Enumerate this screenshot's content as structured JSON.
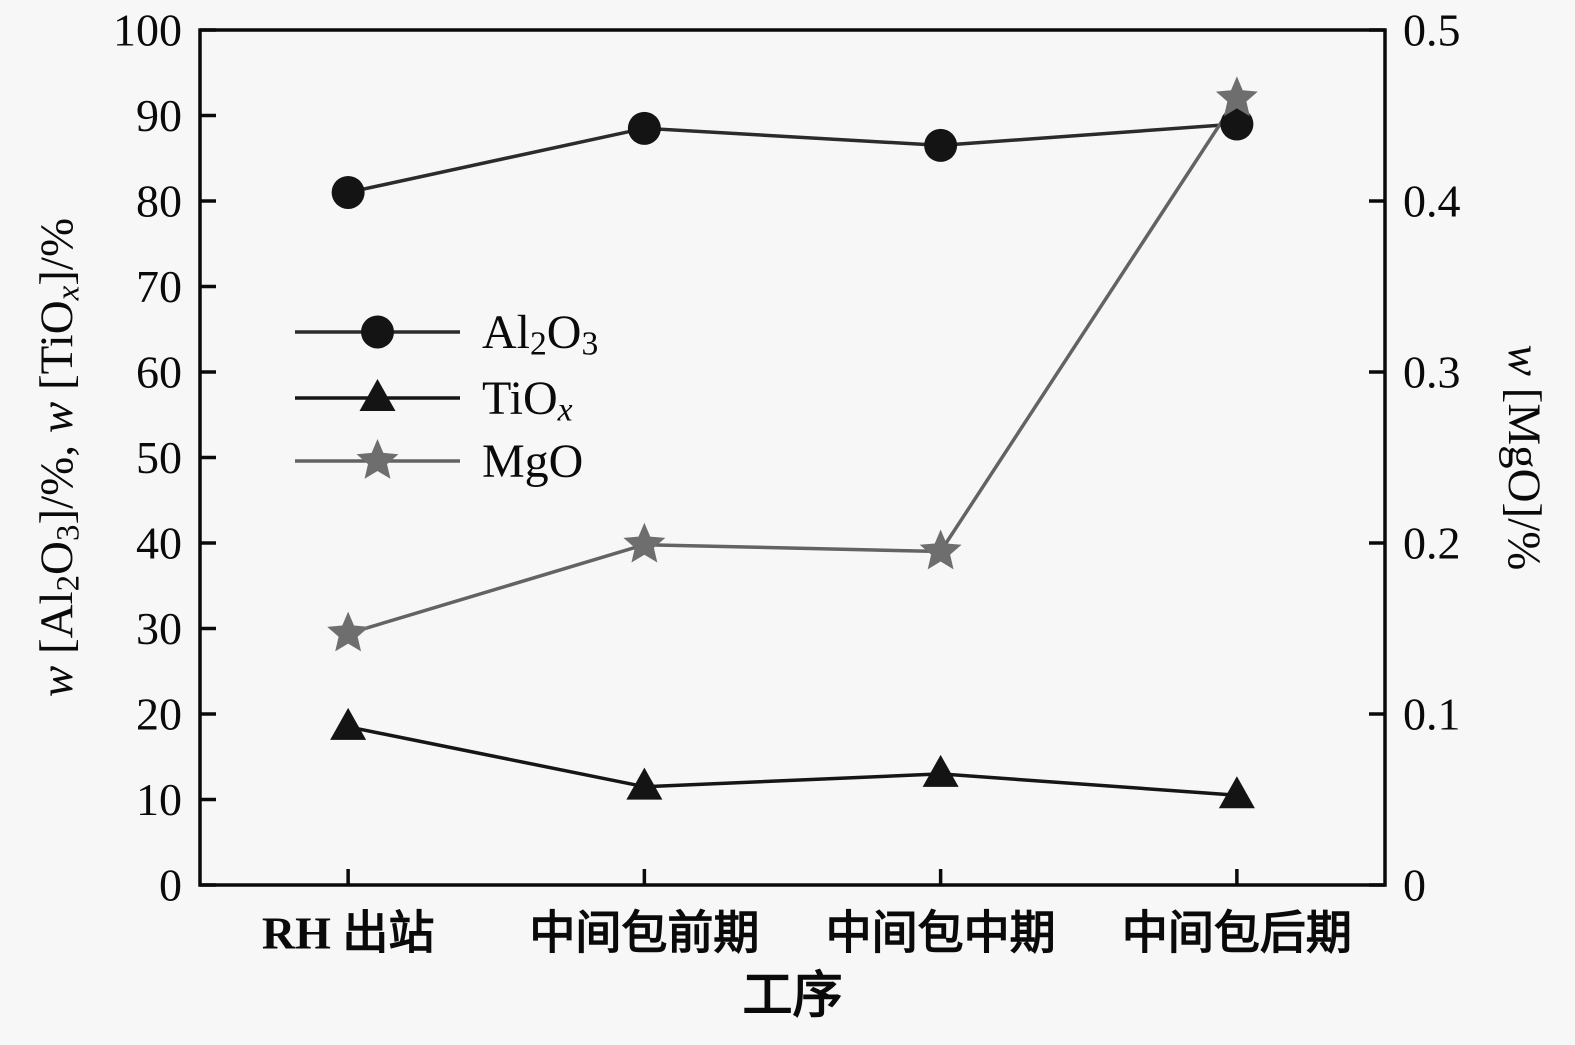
{
  "figure": {
    "bg_color": "#f7f7f7",
    "axis_color": "#0a0a0a"
  },
  "chart_data": {
    "type": "line",
    "categories": [
      "RH 出站",
      "中间包前期",
      "中间包中期",
      "中间包后期"
    ],
    "xlabel": "工序",
    "left_axis": {
      "label_tokens": [
        {
          "t": "w",
          "i": true
        },
        {
          "t": " [Al"
        },
        {
          "t": "2",
          "sub": true
        },
        {
          "t": "O"
        },
        {
          "t": "3",
          "sub": true
        },
        {
          "t": "]/%, "
        },
        {
          "t": "w",
          "i": true
        },
        {
          "t": " [TiO"
        },
        {
          "t": "x",
          "sub": true,
          "i": true
        },
        {
          "t": "]/%"
        }
      ],
      "label_plain": "w [Al2O3]/%, w [TiOx]/%",
      "min": 0,
      "max": 100,
      "ticks": [
        0,
        10,
        20,
        30,
        40,
        50,
        60,
        70,
        80,
        90,
        100
      ],
      "tick_labels": [
        "0",
        "10",
        "20",
        "30",
        "40",
        "50",
        "60",
        "70",
        "80",
        "90",
        "100"
      ]
    },
    "right_axis": {
      "label_tokens": [
        {
          "t": "w",
          "i": true
        },
        {
          "t": " [MgO]/%"
        }
      ],
      "label_plain": "w [MgO]/%",
      "min": 0,
      "max": 0.5,
      "ticks": [
        0,
        0.1,
        0.2,
        0.3,
        0.4,
        0.5
      ],
      "tick_labels": [
        "0",
        "0.1",
        "0.2",
        "0.3",
        "0.4",
        "0.5"
      ]
    },
    "series": [
      {
        "name_plain": "Al2O3",
        "name_tokens": [
          {
            "t": "Al"
          },
          {
            "t": "2",
            "sub": true
          },
          {
            "t": "O"
          },
          {
            "t": "3",
            "sub": true
          }
        ],
        "marker": "circle",
        "line_color": "#2b2b2b",
        "marker_color": "#141414",
        "axis": "left",
        "values": [
          81,
          88.5,
          86.5,
          89
        ]
      },
      {
        "name_plain": "TiOx",
        "name_tokens": [
          {
            "t": "TiO"
          },
          {
            "t": "x",
            "sub": true,
            "i": true
          }
        ],
        "marker": "triangle",
        "line_color": "#161616",
        "marker_color": "#141414",
        "axis": "left",
        "values": [
          18.5,
          11.5,
          13,
          10.5
        ]
      },
      {
        "name_plain": "MgO",
        "name_tokens": [
          {
            "t": "MgO"
          }
        ],
        "marker": "star",
        "line_color": "#636363",
        "marker_color": "#6e6e6e",
        "axis": "right",
        "values": [
          0.147,
          0.199,
          0.195,
          0.46
        ]
      }
    ],
    "legend": {
      "position": "inside-upper-left",
      "items": [
        "Al2O3",
        "TiOx",
        "MgO"
      ]
    }
  }
}
